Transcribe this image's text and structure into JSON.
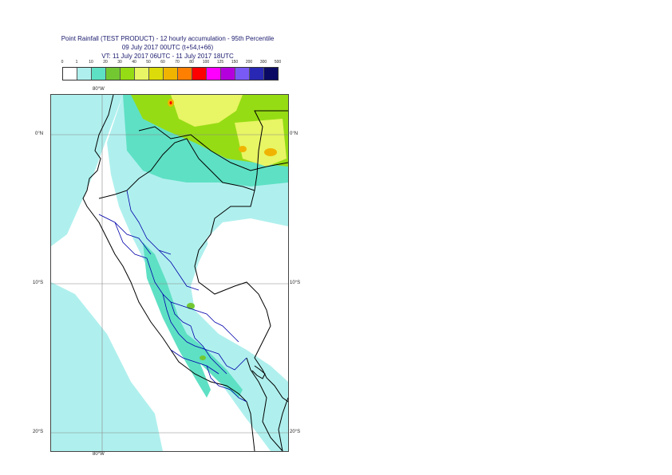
{
  "title": {
    "line1": "Point Rainfall (TEST PRODUCT) - 12 hourly accumulation - 95th Percentile",
    "line2": "09 July 2017 00UTC (t+54,t+66)",
    "line3": "VT: 11 July 2017 06UTC - 11 July 2017 18UTC"
  },
  "legend": {
    "thresholds": [
      "0",
      "1",
      "10",
      "20",
      "30",
      "40",
      "50",
      "60",
      "70",
      "80",
      "100",
      "125",
      "150",
      "200",
      "300",
      "500"
    ],
    "colors": [
      "#ffffff",
      "#aff0ee",
      "#5ee0c4",
      "#73c832",
      "#96dc14",
      "#e8f564",
      "#dcdc0a",
      "#f0b400",
      "#ff8000",
      "#ff0000",
      "#ff00ff",
      "#b400dc",
      "#7a5af5",
      "#2828b4",
      "#0a0a64"
    ]
  },
  "map": {
    "lon_label_top": "80°W",
    "lon_label_bottom": "80°W",
    "lat_labels": {
      "left": [
        "0°N",
        "10°S",
        "20°S"
      ],
      "right": [
        "0°N",
        "10°S",
        "20°S"
      ]
    },
    "colors": {
      "light_cyan": "#aff0ee",
      "cyan": "#5ee0c4",
      "green": "#73c832",
      "yellow_green": "#96dc14",
      "yellow": "#e8f564",
      "orange": "#f0b400",
      "country_border": "#000000",
      "region_border": "#0000aa",
      "gridline": "#888888"
    }
  }
}
